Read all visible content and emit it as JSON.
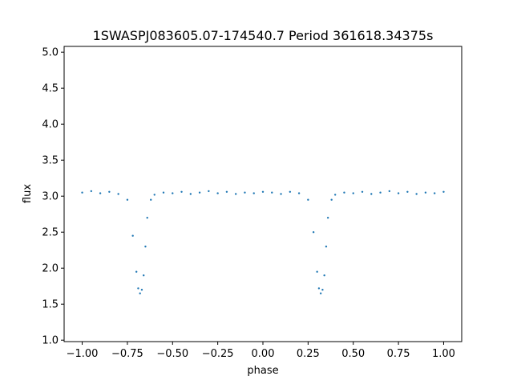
{
  "chart_data": {
    "type": "scatter",
    "title": "1SWASPJ083605.07-174540.7 Period 361618.34375s",
    "xlabel": "phase",
    "ylabel": "flux",
    "xlim": [
      -1.1,
      1.1
    ],
    "ylim": [
      0.98,
      5.08
    ],
    "x_ticks": [
      -1.0,
      -0.75,
      -0.5,
      -0.25,
      0.0,
      0.25,
      0.5,
      0.75,
      1.0
    ],
    "x_tick_labels": [
      "−1.00",
      "−0.75",
      "−0.50",
      "−0.25",
      "0.00",
      "0.25",
      "0.50",
      "0.75",
      "1.00"
    ],
    "y_ticks": [
      1.0,
      1.5,
      2.0,
      2.5,
      3.0,
      3.5,
      4.0,
      4.5,
      5.0
    ],
    "y_tick_labels": [
      "1.0",
      "1.5",
      "2.0",
      "2.5",
      "3.0",
      "3.5",
      "4.0",
      "4.5",
      "5.0"
    ],
    "grid": false,
    "legend": "none",
    "marker_color": "#1f77b4",
    "series": [
      {
        "x": [
          -1.0,
          -0.95,
          -0.9,
          -0.85,
          -0.8,
          -0.75,
          -0.72,
          -0.7,
          -0.69,
          -0.68,
          -0.67,
          -0.66,
          -0.65,
          -0.64,
          -0.62,
          -0.6,
          -0.55,
          -0.5,
          -0.45,
          -0.4,
          -0.35,
          -0.3,
          -0.25,
          -0.2,
          -0.15,
          -0.1,
          -0.05,
          0.0,
          0.05,
          0.1,
          0.15,
          0.2,
          0.25,
          0.28,
          0.3,
          0.31,
          0.32,
          0.33,
          0.34,
          0.35,
          0.36,
          0.38,
          0.4,
          0.45,
          0.5,
          0.55,
          0.6,
          0.65,
          0.7,
          0.75,
          0.8,
          0.85,
          0.9,
          0.95,
          1.0
        ],
        "y": [
          3.05,
          3.07,
          3.04,
          3.06,
          3.03,
          2.95,
          2.45,
          1.95,
          1.72,
          1.65,
          1.7,
          1.9,
          2.3,
          2.7,
          2.95,
          3.02,
          3.05,
          3.04,
          3.06,
          3.03,
          3.05,
          3.07,
          3.04,
          3.06,
          3.03,
          3.05,
          3.04,
          3.06,
          3.05,
          3.03,
          3.06,
          3.04,
          2.95,
          2.5,
          1.95,
          1.72,
          1.65,
          1.7,
          1.9,
          2.3,
          2.7,
          2.95,
          3.02,
          3.05,
          3.04,
          3.06,
          3.03,
          3.05,
          3.07,
          3.04,
          3.06,
          3.03,
          3.05,
          3.04,
          3.06
        ]
      }
    ]
  }
}
